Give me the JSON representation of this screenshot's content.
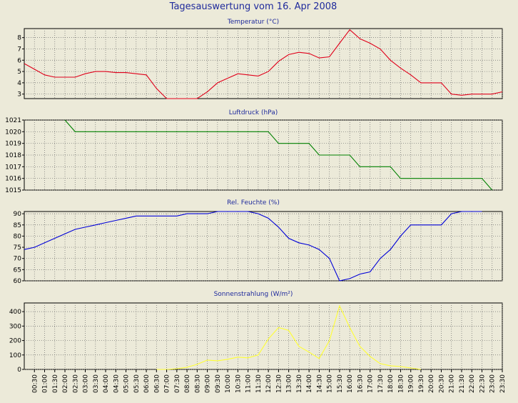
{
  "page_title": "Tagesauswertung vom 16. Apr 2008",
  "colors": {
    "background": "#ecead9",
    "plot_background": "#ecead9",
    "title_text": "#1f2a9c",
    "grid": "#6a6a6a",
    "temperature": "#e0001a",
    "pressure": "#008000",
    "humidity": "#0000d8",
    "radiation": "#ffff33"
  },
  "x_ticks": [
    "00:30",
    "01:00",
    "01:30",
    "02:00",
    "02:30",
    "03:00",
    "03:30",
    "04:00",
    "04:30",
    "05:00",
    "05:30",
    "06:00",
    "06:30",
    "07:00",
    "07:30",
    "08:00",
    "08:30",
    "09:00",
    "09:30",
    "10:00",
    "10:30",
    "11:00",
    "11:30",
    "12:00",
    "12:30",
    "13:00",
    "13:30",
    "14:00",
    "14:30",
    "15:00",
    "15:30",
    "16:00",
    "16:30",
    "17:00",
    "17:30",
    "18:00",
    "18:30",
    "19:00",
    "19:30",
    "20:00",
    "20:30",
    "21:00",
    "21:30",
    "22:00",
    "22:30",
    "23:00",
    "23:30"
  ],
  "chart_data": [
    {
      "type": "line",
      "title": "Temperatur (°C)",
      "xlabel": "",
      "ylabel": "",
      "ylim": [
        2.6,
        8.8
      ],
      "yticks": [
        3,
        4,
        5,
        6,
        7,
        8
      ],
      "grid": true,
      "series": [
        {
          "color": "#e0001a",
          "x": [
            "00:00",
            "00:30",
            "01:00",
            "01:30",
            "02:00",
            "02:30",
            "03:00",
            "03:30",
            "04:00",
            "04:30",
            "05:00",
            "05:30",
            "06:00",
            "06:30",
            "07:00",
            "07:30",
            "08:00",
            "08:30",
            "09:00",
            "09:30",
            "10:00",
            "10:30",
            "11:00",
            "11:30",
            "12:00",
            "12:30",
            "13:00",
            "13:30",
            "14:00",
            "14:30",
            "15:00",
            "15:30",
            "16:00",
            "16:30",
            "17:00",
            "17:30",
            "18:00",
            "18:30",
            "19:00",
            "19:30",
            "20:00",
            "20:30",
            "21:00",
            "21:30",
            "22:00",
            "22:30",
            "23:00",
            "23:30"
          ],
          "values": [
            5.7,
            5.2,
            4.7,
            4.5,
            4.5,
            4.5,
            4.8,
            5.0,
            5.0,
            4.9,
            4.9,
            4.8,
            4.7,
            3.5,
            2.6,
            2.5,
            2.5,
            2.6,
            3.2,
            4.0,
            4.4,
            4.8,
            4.7,
            4.6,
            5.0,
            5.9,
            6.5,
            6.7,
            6.6,
            6.2,
            6.3,
            7.5,
            8.7,
            7.9,
            7.5,
            7.0,
            6.0,
            5.3,
            4.7,
            4.0,
            4.0,
            4.0,
            3.0,
            2.9,
            3.0,
            3.0,
            3.0,
            3.2
          ]
        }
      ]
    },
    {
      "type": "line",
      "title": "Luftdruck (hPa)",
      "xlabel": "",
      "ylabel": "",
      "ylim": [
        1015,
        1021
      ],
      "yticks": [
        1015,
        1016,
        1017,
        1018,
        1019,
        1020,
        1021
      ],
      "grid": true,
      "series": [
        {
          "color": "#008000",
          "x": [
            "02:00",
            "02:30",
            "03:00",
            "03:30",
            "04:00",
            "04:30",
            "05:00",
            "05:30",
            "06:00",
            "06:30",
            "07:00",
            "07:30",
            "08:00",
            "08:30",
            "09:00",
            "09:30",
            "10:00",
            "10:30",
            "11:00",
            "11:30",
            "12:00",
            "12:30",
            "13:00",
            "13:30",
            "14:00",
            "14:30",
            "15:00",
            "15:30",
            "16:00",
            "16:30",
            "17:00",
            "17:30",
            "18:00",
            "18:30",
            "19:00",
            "19:30",
            "20:00",
            "20:30",
            "21:00",
            "21:30",
            "22:00",
            "22:30",
            "23:00"
          ],
          "values": [
            1021,
            1020,
            1020,
            1020,
            1020,
            1020,
            1020,
            1020,
            1020,
            1020,
            1020,
            1020,
            1020,
            1020,
            1020,
            1020,
            1020,
            1020,
            1020,
            1020,
            1020,
            1019,
            1019,
            1019,
            1019,
            1018,
            1018,
            1018,
            1018,
            1017,
            1017,
            1017,
            1017,
            1016,
            1016,
            1016,
            1016,
            1016,
            1016,
            1016,
            1016,
            1016,
            1015
          ]
        }
      ]
    },
    {
      "type": "line",
      "title": "Rel. Feuchte (%)",
      "xlabel": "",
      "ylabel": "",
      "ylim": [
        60,
        91
      ],
      "yticks": [
        60,
        65,
        70,
        75,
        80,
        85,
        90
      ],
      "grid": true,
      "series": [
        {
          "color": "#0000d8",
          "x": [
            "00:00",
            "00:30",
            "01:00",
            "01:30",
            "02:00",
            "02:30",
            "03:00",
            "03:30",
            "04:00",
            "04:30",
            "05:00",
            "05:30",
            "06:00",
            "06:30",
            "07:00",
            "07:30",
            "08:00",
            "08:30",
            "09:00",
            "09:30",
            "10:00",
            "10:30",
            "11:00",
            "11:30",
            "12:00",
            "12:30",
            "13:00",
            "13:30",
            "14:00",
            "14:30",
            "15:00",
            "15:30",
            "16:00",
            "16:30",
            "17:00",
            "17:30",
            "18:00",
            "18:30",
            "19:00",
            "19:30",
            "20:00",
            "20:30",
            "21:00",
            "21:30",
            "22:00",
            "22:30"
          ],
          "values": [
            74,
            75,
            77,
            79,
            81,
            83,
            84,
            85,
            86,
            87,
            88,
            89,
            89,
            89,
            89,
            89,
            90,
            90,
            90,
            91,
            91,
            91,
            91,
            90,
            88,
            84,
            79,
            77,
            76,
            74,
            70,
            60,
            61,
            63,
            64,
            70,
            74,
            80,
            85,
            85,
            85,
            85,
            90,
            91,
            91,
            92
          ]
        }
      ]
    },
    {
      "type": "line",
      "title": "Sonnenstrahlung (W/m²)",
      "xlabel": "",
      "ylabel": "",
      "ylim": [
        0,
        460
      ],
      "yticks": [
        0,
        100,
        200,
        300,
        400
      ],
      "grid": true,
      "series": [
        {
          "color": "#ffff33",
          "x": [
            "06:30",
            "07:00",
            "07:30",
            "08:00",
            "08:30",
            "09:00",
            "09:30",
            "10:00",
            "10:30",
            "11:00",
            "11:30",
            "12:00",
            "12:30",
            "13:00",
            "13:30",
            "14:00",
            "14:30",
            "15:00",
            "15:30",
            "16:00",
            "16:30",
            "17:00",
            "17:30",
            "18:00",
            "18:30",
            "19:00",
            "19:30"
          ],
          "values": [
            0,
            0,
            5,
            15,
            35,
            65,
            60,
            70,
            85,
            80,
            100,
            210,
            290,
            270,
            160,
            120,
            75,
            200,
            440,
            290,
            160,
            90,
            40,
            25,
            20,
            10,
            0
          ]
        }
      ]
    }
  ]
}
